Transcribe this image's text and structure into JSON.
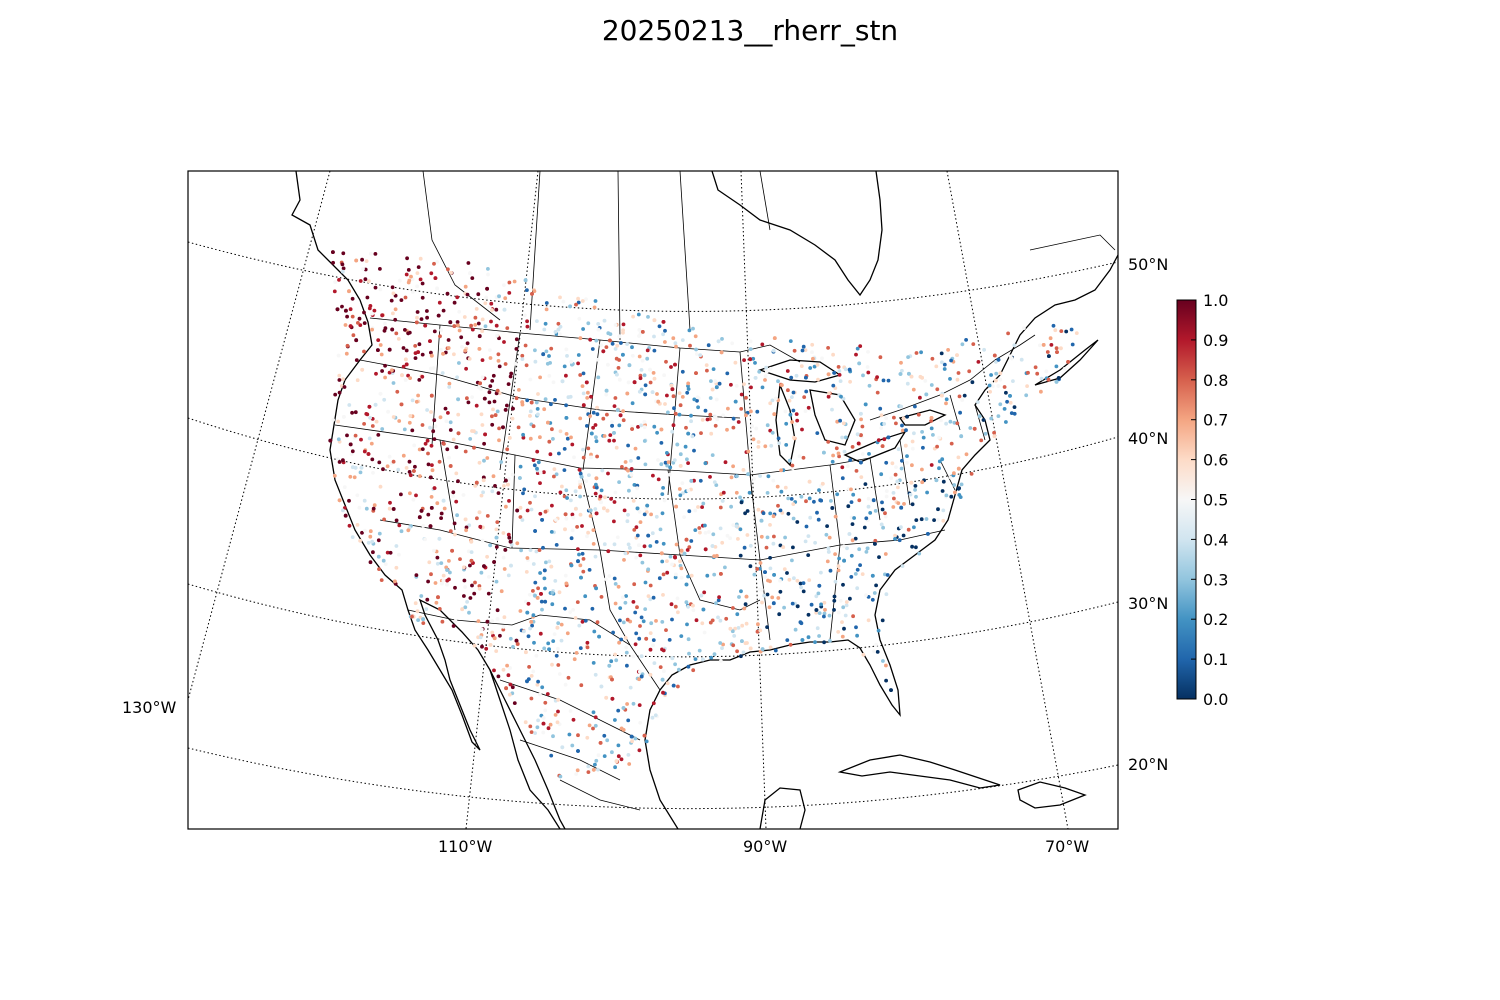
{
  "title": "20250213__rherr_stn",
  "map": {
    "projection": "lambert-conformal",
    "lon_labels": [
      "130°W",
      "110°W",
      "90°W",
      "70°W"
    ],
    "lat_labels": [
      "50°N",
      "40°N",
      "30°N",
      "20°N"
    ],
    "graticule_style": "dotted"
  },
  "colorbar": {
    "colormap": "RdBu_r",
    "ticks": [
      "0.0",
      "0.1",
      "0.2",
      "0.3",
      "0.4",
      "0.5",
      "0.6",
      "0.7",
      "0.8",
      "0.9",
      "1.0"
    ],
    "vmin": 0.0,
    "vmax": 1.0,
    "colors": [
      "#053061",
      "#2166ac",
      "#4393c3",
      "#92c5de",
      "#d1e5f0",
      "#f7f7f7",
      "#fddbc7",
      "#f4a582",
      "#d6604d",
      "#b2182b",
      "#67001f"
    ]
  }
}
